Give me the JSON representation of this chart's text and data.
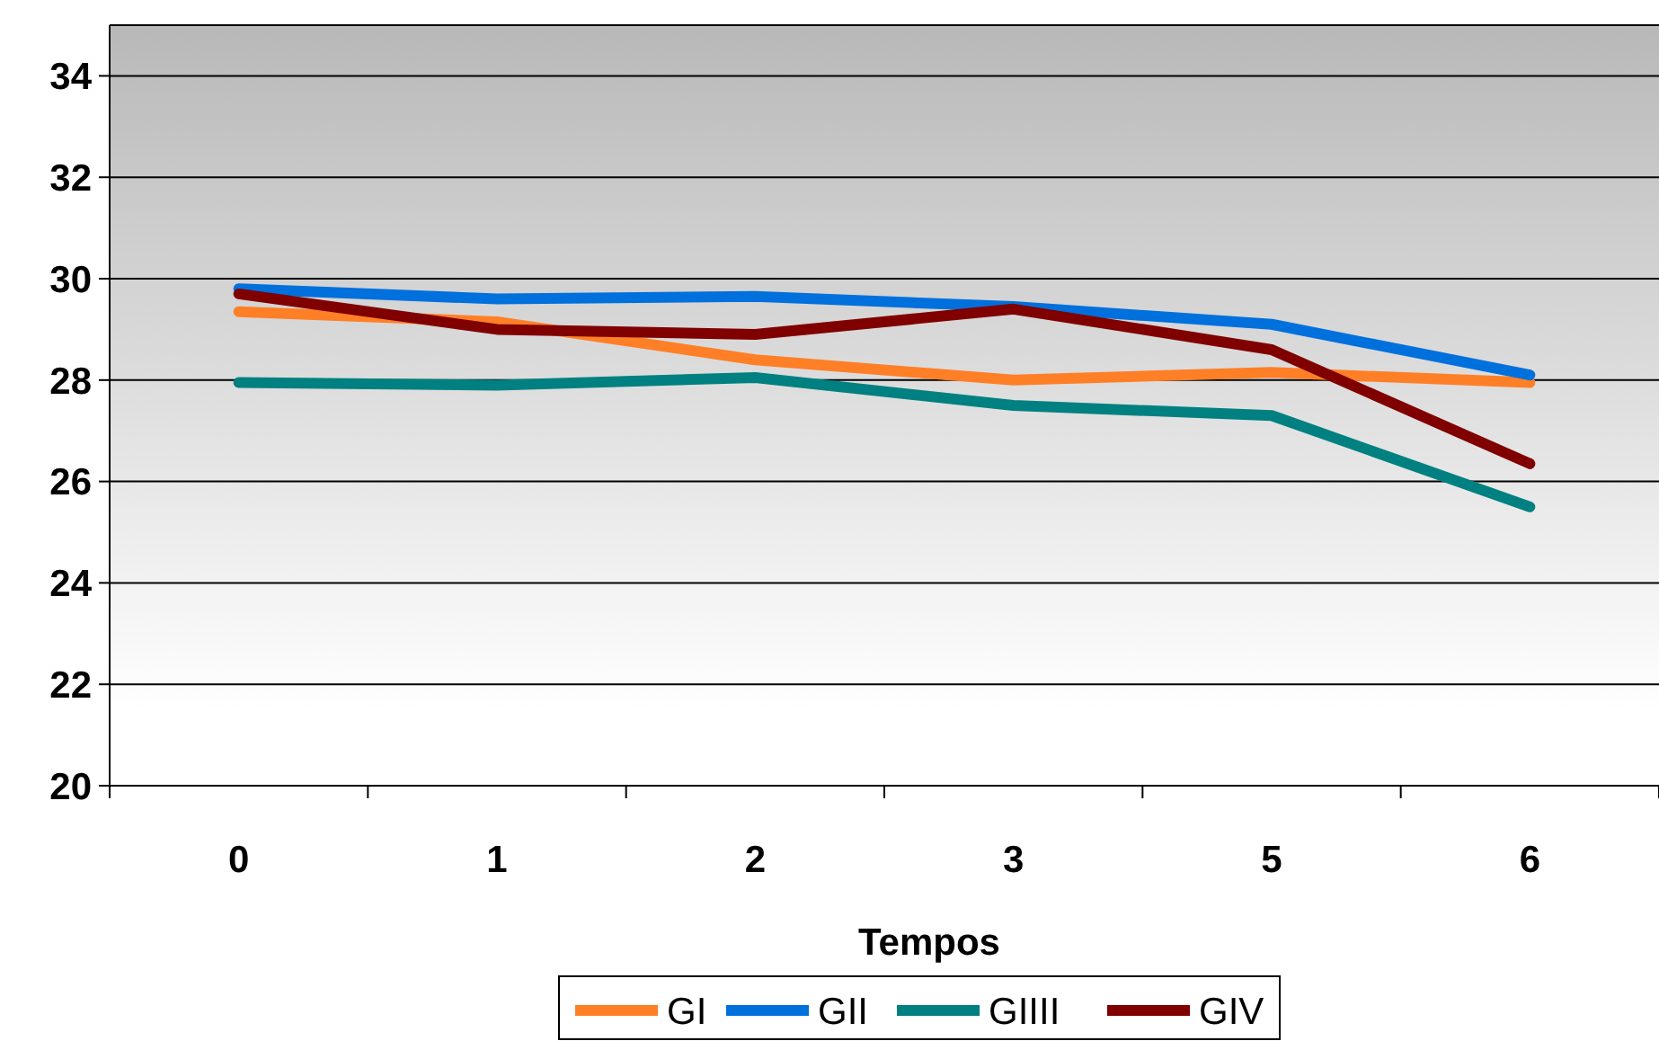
{
  "chart_data": {
    "type": "line",
    "xlabel": "Tempos",
    "categories": [
      "0",
      "1",
      "2",
      "3",
      "5",
      "6"
    ],
    "ylim": [
      20,
      35
    ],
    "yticks": [
      20,
      22,
      24,
      26,
      28,
      30,
      32,
      34
    ],
    "grid": "y",
    "legend": "bottom",
    "marker": "none",
    "line_style": "solid",
    "series": [
      {
        "name": "GI",
        "color": "#ff7f27",
        "values": [
          29.35,
          29.15,
          28.4,
          28.0,
          28.15,
          27.95
        ]
      },
      {
        "name": "GII",
        "color": "#0070dd",
        "values": [
          29.8,
          29.6,
          29.65,
          29.45,
          29.1,
          28.1
        ]
      },
      {
        "name": "GIIII",
        "color": "#008080",
        "values": [
          27.95,
          27.9,
          28.05,
          27.5,
          27.3,
          25.5
        ]
      },
      {
        "name": "GIV",
        "color": "#800000",
        "values": [
          29.7,
          29.0,
          28.9,
          29.4,
          28.6,
          26.35
        ]
      }
    ]
  }
}
